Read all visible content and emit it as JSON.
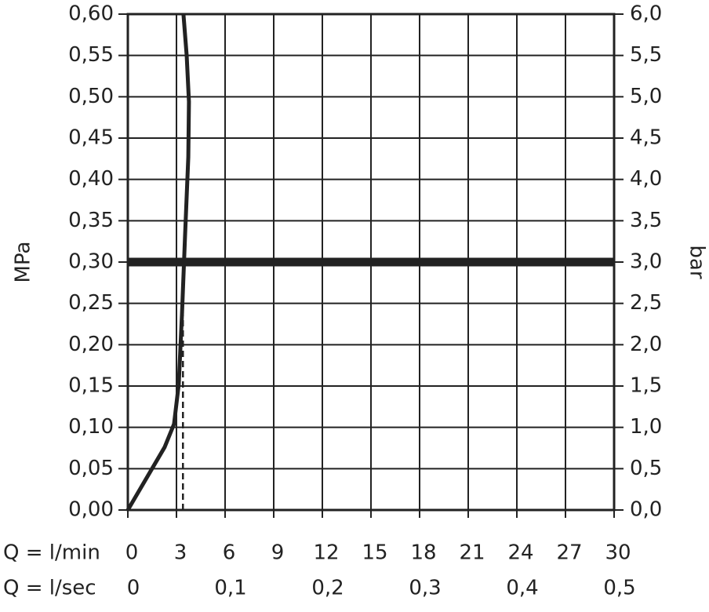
{
  "chart_data": {
    "type": "line",
    "ylabel": "MPa",
    "y2label": "bar",
    "xlabel": "Q = l/min",
    "x2label": "Q = l/sec",
    "xlim": [
      0,
      30
    ],
    "xticks": [
      0,
      3,
      6,
      9,
      12,
      15,
      18,
      21,
      24,
      27,
      30
    ],
    "x2lim": [
      0,
      0.5
    ],
    "x2ticks": [
      0,
      {
        "value": 0.1,
        "label": "0,1"
      },
      {
        "value": 0.2,
        "label": "0,2"
      },
      {
        "value": 0.3,
        "label": "0,3"
      },
      {
        "value": 0.4,
        "label": "0,4"
      },
      {
        "value": 0.5,
        "label": "0,5"
      }
    ],
    "ylim": [
      0,
      0.6
    ],
    "yticks": [
      {
        "value": 0,
        "label": "0,00"
      },
      {
        "value": 0.05,
        "label": "0,05"
      },
      {
        "value": 0.1,
        "label": "0,10"
      },
      {
        "value": 0.15,
        "label": "0,15"
      },
      {
        "value": 0.2,
        "label": "0,20"
      },
      {
        "value": 0.25,
        "label": "0,25"
      },
      {
        "value": 0.3,
        "label": "0,30"
      },
      {
        "value": 0.35,
        "label": "0,35"
      },
      {
        "value": 0.4,
        "label": "0,40"
      },
      {
        "value": 0.45,
        "label": "0,45"
      },
      {
        "value": 0.5,
        "label": "0,50"
      },
      {
        "value": 0.55,
        "label": "0,55"
      },
      {
        "value": 0.6,
        "label": "0,60"
      }
    ],
    "y2lim": [
      0,
      6
    ],
    "y2ticks": [
      {
        "value": 0,
        "label": "0,0"
      },
      {
        "value": 0.5,
        "label": "0,5"
      },
      {
        "value": 1,
        "label": "1,0"
      },
      {
        "value": 1.5,
        "label": "1,5"
      },
      {
        "value": 2,
        "label": "2,0"
      },
      {
        "value": 2.5,
        "label": "2,5"
      },
      {
        "value": 3,
        "label": "3,0"
      },
      {
        "value": 3.5,
        "label": "3,5"
      },
      {
        "value": 4,
        "label": "4,0"
      },
      {
        "value": 4.5,
        "label": "4,5"
      },
      {
        "value": 5,
        "label": "5,0"
      },
      {
        "value": 5.5,
        "label": "5,5"
      },
      {
        "value": 6,
        "label": "6,0"
      }
    ],
    "grid": true,
    "series": [
      {
        "color": "#222222",
        "x": [
          0,
          2.27,
          2.85,
          3.14,
          3.34,
          3.53,
          3.73,
          3.77,
          3.63,
          3.43
        ],
        "values": [
          0,
          0.076,
          0.104,
          0.152,
          0.237,
          0.332,
          0.427,
          0.494,
          0.55,
          0.6
        ]
      }
    ],
    "reference_line": 0.3,
    "dashed_line": {
      "x": 3.4,
      "y": [
        0,
        0.24
      ]
    }
  }
}
